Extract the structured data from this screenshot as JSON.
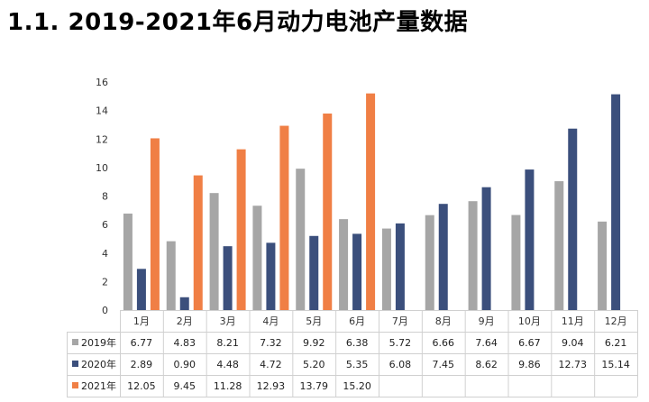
{
  "title": "1.1.  2019-2021年6月动力电池产量数据",
  "chart_data": {
    "type": "bar",
    "categories": [
      "1月",
      "2月",
      "3月",
      "4月",
      "5月",
      "6月",
      "7月",
      "8月",
      "9月",
      "10月",
      "11月",
      "12月"
    ],
    "ylim": [
      0,
      16
    ],
    "yticks": [
      0,
      2,
      4,
      6,
      8,
      10,
      12,
      14,
      16
    ],
    "grid": false,
    "legend": "data-table-left",
    "series": [
      {
        "name": "2019年",
        "color": "#a6a6a6",
        "values": [
          6.77,
          4.83,
          8.21,
          7.32,
          9.92,
          6.38,
          5.72,
          6.66,
          7.64,
          6.67,
          9.04,
          6.21
        ],
        "labels": [
          "6.77",
          "4.83",
          "8.21",
          "7.32",
          "9.92",
          "6.38",
          "5.72",
          "6.66",
          "7.64",
          "6.67",
          "9.04",
          "6.21"
        ]
      },
      {
        "name": "2020年",
        "color": "#3b4f7c",
        "values": [
          2.89,
          0.9,
          4.48,
          4.72,
          5.2,
          5.35,
          6.08,
          7.45,
          8.62,
          9.86,
          12.73,
          15.14
        ],
        "labels": [
          "2.89",
          "0.90",
          "4.48",
          "4.72",
          "5.20",
          "5.35",
          "6.08",
          "7.45",
          "8.62",
          "9.86",
          "12.73",
          "15.14"
        ]
      },
      {
        "name": "2021年",
        "color": "#f07f45",
        "values": [
          12.05,
          9.45,
          11.28,
          12.93,
          13.79,
          15.2,
          null,
          null,
          null,
          null,
          null,
          null
        ],
        "labels": [
          "12.05",
          "9.45",
          "11.28",
          "12.93",
          "13.79",
          "15.20",
          "",
          "",
          "",
          "",
          "",
          ""
        ]
      }
    ]
  }
}
